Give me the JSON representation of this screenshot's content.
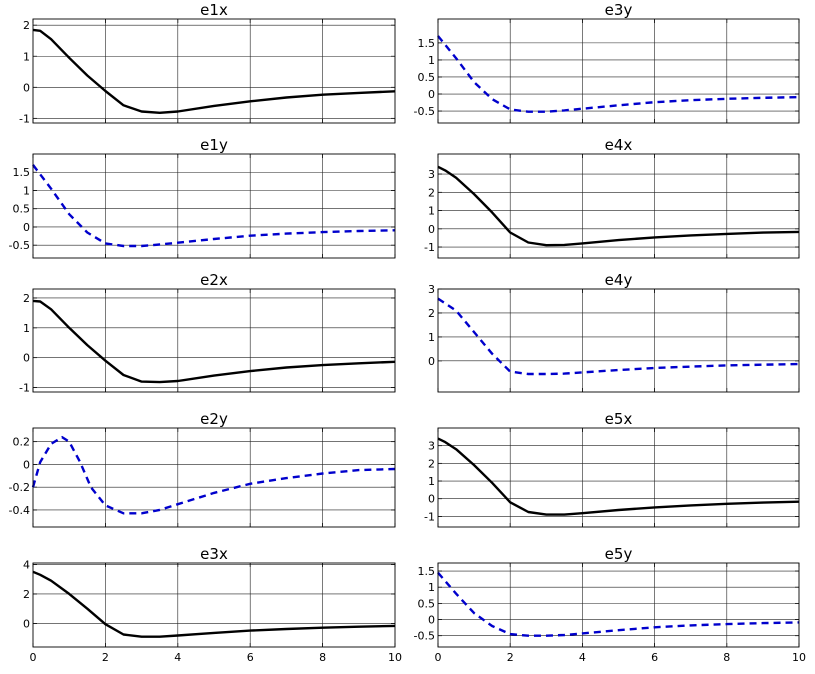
{
  "colors": {
    "solid_series": "#000000",
    "dashed_series": "#0000cc",
    "grid": "#222222"
  },
  "chart_data": [
    {
      "type": "line",
      "title": "e1x",
      "grid": true,
      "style": "solid",
      "xlim": [
        0,
        10
      ],
      "ylim": [
        -1.15,
        2.2
      ],
      "xticks": [
        0,
        2,
        4,
        6,
        8,
        10
      ],
      "yticks": [
        -1,
        0,
        1,
        2
      ],
      "x": [
        0,
        0.2,
        0.5,
        1,
        1.5,
        2,
        2.5,
        3,
        3.5,
        4,
        5,
        6,
        7,
        8,
        9,
        10
      ],
      "y": [
        1.85,
        1.82,
        1.55,
        0.95,
        0.38,
        -0.12,
        -0.58,
        -0.78,
        -0.82,
        -0.78,
        -0.6,
        -0.45,
        -0.33,
        -0.24,
        -0.18,
        -0.13
      ]
    },
    {
      "type": "line",
      "title": "e3y",
      "grid": true,
      "style": "dashed",
      "xlim": [
        0,
        10
      ],
      "ylim": [
        -0.85,
        2.2
      ],
      "xticks": [
        0,
        2,
        4,
        6,
        8,
        10
      ],
      "yticks": [
        -0.5,
        0,
        0.5,
        1,
        1.5
      ],
      "x": [
        0,
        0.5,
        1,
        1.5,
        2,
        2.5,
        3,
        3.5,
        4,
        5,
        6,
        7,
        8,
        9,
        10
      ],
      "y": [
        1.7,
        1.05,
        0.35,
        -0.15,
        -0.45,
        -0.52,
        -0.52,
        -0.48,
        -0.43,
        -0.33,
        -0.24,
        -0.18,
        -0.14,
        -0.11,
        -0.09
      ]
    },
    {
      "type": "line",
      "title": "e1y",
      "grid": true,
      "style": "dashed",
      "xlim": [
        0,
        10
      ],
      "ylim": [
        -0.85,
        2.0
      ],
      "xticks": [
        0,
        2,
        4,
        6,
        8,
        10
      ],
      "yticks": [
        -0.5,
        0,
        0.5,
        1,
        1.5
      ],
      "x": [
        0,
        0.5,
        1,
        1.5,
        2,
        2.5,
        3,
        3.5,
        4,
        5,
        6,
        7,
        8,
        9,
        10
      ],
      "y": [
        1.7,
        1.05,
        0.35,
        -0.15,
        -0.45,
        -0.52,
        -0.52,
        -0.48,
        -0.43,
        -0.33,
        -0.24,
        -0.18,
        -0.14,
        -0.11,
        -0.09
      ]
    },
    {
      "type": "line",
      "title": "e4x",
      "grid": true,
      "style": "solid",
      "xlim": [
        0,
        10
      ],
      "ylim": [
        -1.6,
        4.1
      ],
      "xticks": [
        0,
        2,
        4,
        6,
        8,
        10
      ],
      "yticks": [
        -1,
        0,
        1,
        2,
        3
      ],
      "x": [
        0,
        0.2,
        0.5,
        1,
        1.5,
        2,
        2.5,
        3,
        3.5,
        4,
        5,
        6,
        7,
        8,
        9,
        10
      ],
      "y": [
        3.4,
        3.2,
        2.8,
        1.9,
        0.9,
        -0.2,
        -0.75,
        -0.9,
        -0.88,
        -0.8,
        -0.62,
        -0.47,
        -0.36,
        -0.28,
        -0.21,
        -0.17
      ]
    },
    {
      "type": "line",
      "title": "e2x",
      "grid": true,
      "style": "solid",
      "xlim": [
        0,
        10
      ],
      "ylim": [
        -1.15,
        2.3
      ],
      "xticks": [
        0,
        2,
        4,
        6,
        8,
        10
      ],
      "yticks": [
        -1,
        0,
        1,
        2
      ],
      "x": [
        0,
        0.2,
        0.5,
        1,
        1.5,
        2,
        2.5,
        3,
        3.5,
        4,
        5,
        6,
        7,
        8,
        9,
        10
      ],
      "y": [
        1.9,
        1.88,
        1.62,
        1.0,
        0.42,
        -0.1,
        -0.58,
        -0.8,
        -0.82,
        -0.78,
        -0.6,
        -0.45,
        -0.33,
        -0.25,
        -0.19,
        -0.14
      ]
    },
    {
      "type": "line",
      "title": "e4y",
      "grid": true,
      "style": "dashed",
      "xlim": [
        0,
        10
      ],
      "ylim": [
        -1.3,
        3.0
      ],
      "xticks": [
        0,
        2,
        4,
        6,
        8,
        10
      ],
      "yticks": [
        0,
        1,
        2,
        3
      ],
      "x": [
        0,
        0.5,
        1,
        1.5,
        2,
        2.5,
        3,
        3.5,
        4,
        5,
        6,
        7,
        8,
        9,
        10
      ],
      "y": [
        2.6,
        2.1,
        1.2,
        0.3,
        -0.45,
        -0.55,
        -0.55,
        -0.53,
        -0.48,
        -0.38,
        -0.3,
        -0.24,
        -0.19,
        -0.16,
        -0.13
      ]
    },
    {
      "type": "line",
      "title": "e2y",
      "grid": true,
      "style": "dashed",
      "xlim": [
        0,
        10
      ],
      "ylim": [
        -0.55,
        0.32
      ],
      "xticks": [
        0,
        2,
        4,
        6,
        8,
        10
      ],
      "yticks": [
        -0.4,
        -0.2,
        0,
        0.2
      ],
      "x": [
        0,
        0.2,
        0.5,
        0.8,
        1,
        1.3,
        1.6,
        2,
        2.5,
        3,
        3.5,
        4,
        5,
        6,
        7,
        8,
        9,
        10
      ],
      "y": [
        -0.2,
        0.02,
        0.18,
        0.24,
        0.2,
        0.02,
        -0.2,
        -0.36,
        -0.43,
        -0.43,
        -0.4,
        -0.35,
        -0.25,
        -0.17,
        -0.12,
        -0.08,
        -0.05,
        -0.04
      ]
    },
    {
      "type": "line",
      "title": "e5x",
      "grid": true,
      "style": "solid",
      "xlim": [
        0,
        10
      ],
      "ylim": [
        -1.6,
        4.0
      ],
      "xticks": [
        0,
        2,
        4,
        6,
        8,
        10
      ],
      "yticks": [
        -1,
        0,
        1,
        2,
        3
      ],
      "x": [
        0,
        0.2,
        0.5,
        1,
        1.5,
        2,
        2.5,
        3,
        3.5,
        4,
        5,
        6,
        7,
        8,
        9,
        10
      ],
      "y": [
        3.4,
        3.2,
        2.8,
        1.9,
        0.9,
        -0.2,
        -0.75,
        -0.9,
        -0.9,
        -0.82,
        -0.64,
        -0.49,
        -0.38,
        -0.29,
        -0.22,
        -0.17
      ]
    },
    {
      "type": "line",
      "title": "e3x",
      "grid": true,
      "style": "solid",
      "xlim": [
        0,
        10
      ],
      "ylim": [
        -1.6,
        4.1
      ],
      "xticks": [
        0,
        2,
        4,
        6,
        8,
        10
      ],
      "yticks": [
        0,
        2,
        4
      ],
      "x": [
        0,
        0.2,
        0.5,
        1,
        1.5,
        2,
        2.5,
        3,
        3.5,
        4,
        5,
        6,
        7,
        8,
        9,
        10
      ],
      "y": [
        3.5,
        3.3,
        2.9,
        2.0,
        1.0,
        -0.05,
        -0.75,
        -0.9,
        -0.9,
        -0.82,
        -0.64,
        -0.49,
        -0.38,
        -0.29,
        -0.22,
        -0.17
      ]
    },
    {
      "type": "line",
      "title": "e5y",
      "grid": true,
      "style": "dashed",
      "xlim": [
        0,
        10
      ],
      "ylim": [
        -0.85,
        1.75
      ],
      "xticks": [
        0,
        2,
        4,
        6,
        8,
        10
      ],
      "yticks": [
        -0.5,
        0,
        0.5,
        1,
        1.5
      ],
      "x": [
        0,
        0.5,
        1,
        1.5,
        2,
        2.5,
        3,
        3.5,
        4,
        5,
        6,
        7,
        8,
        9,
        10
      ],
      "y": [
        1.45,
        0.8,
        0.2,
        -0.2,
        -0.45,
        -0.5,
        -0.5,
        -0.48,
        -0.43,
        -0.33,
        -0.24,
        -0.18,
        -0.14,
        -0.11,
        -0.09
      ]
    }
  ]
}
